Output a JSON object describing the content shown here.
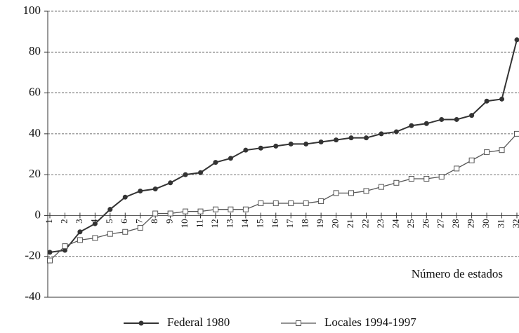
{
  "chart_data": {
    "type": "line",
    "annotation": "Número de estados",
    "categories": [
      "1",
      "2",
      "3",
      "4",
      "5",
      "6",
      "7",
      "8",
      "9",
      "10",
      "11",
      "12",
      "13",
      "14",
      "15",
      "16",
      "17",
      "18",
      "19",
      "20",
      "21",
      "22",
      "23",
      "24",
      "25",
      "26",
      "27",
      "28",
      "29",
      "30",
      "31",
      "32"
    ],
    "series": [
      {
        "name": "Federal 1980",
        "color": "#333333",
        "marker": "circle",
        "values": [
          -18,
          -17,
          -8,
          -4,
          3,
          9,
          12,
          13,
          16,
          20,
          21,
          26,
          28,
          32,
          33,
          34,
          35,
          35,
          36,
          37,
          38,
          38,
          40,
          41,
          44,
          45,
          47,
          47,
          49,
          56,
          57,
          86
        ]
      },
      {
        "name": "Locales 1994-1997",
        "color": "#555555",
        "marker": "square",
        "values": [
          -22,
          -15,
          -12,
          -11,
          -9,
          -8,
          -6,
          1,
          1,
          2,
          2,
          3,
          3,
          3,
          6,
          6,
          6,
          6,
          7,
          11,
          11,
          12,
          14,
          16,
          18,
          18,
          19,
          23,
          27,
          31,
          32,
          40
        ]
      }
    ],
    "ylim": [
      -40,
      100
    ],
    "yticks": [
      -40,
      -20,
      0,
      20,
      40,
      60,
      80,
      100
    ],
    "grid": true
  }
}
